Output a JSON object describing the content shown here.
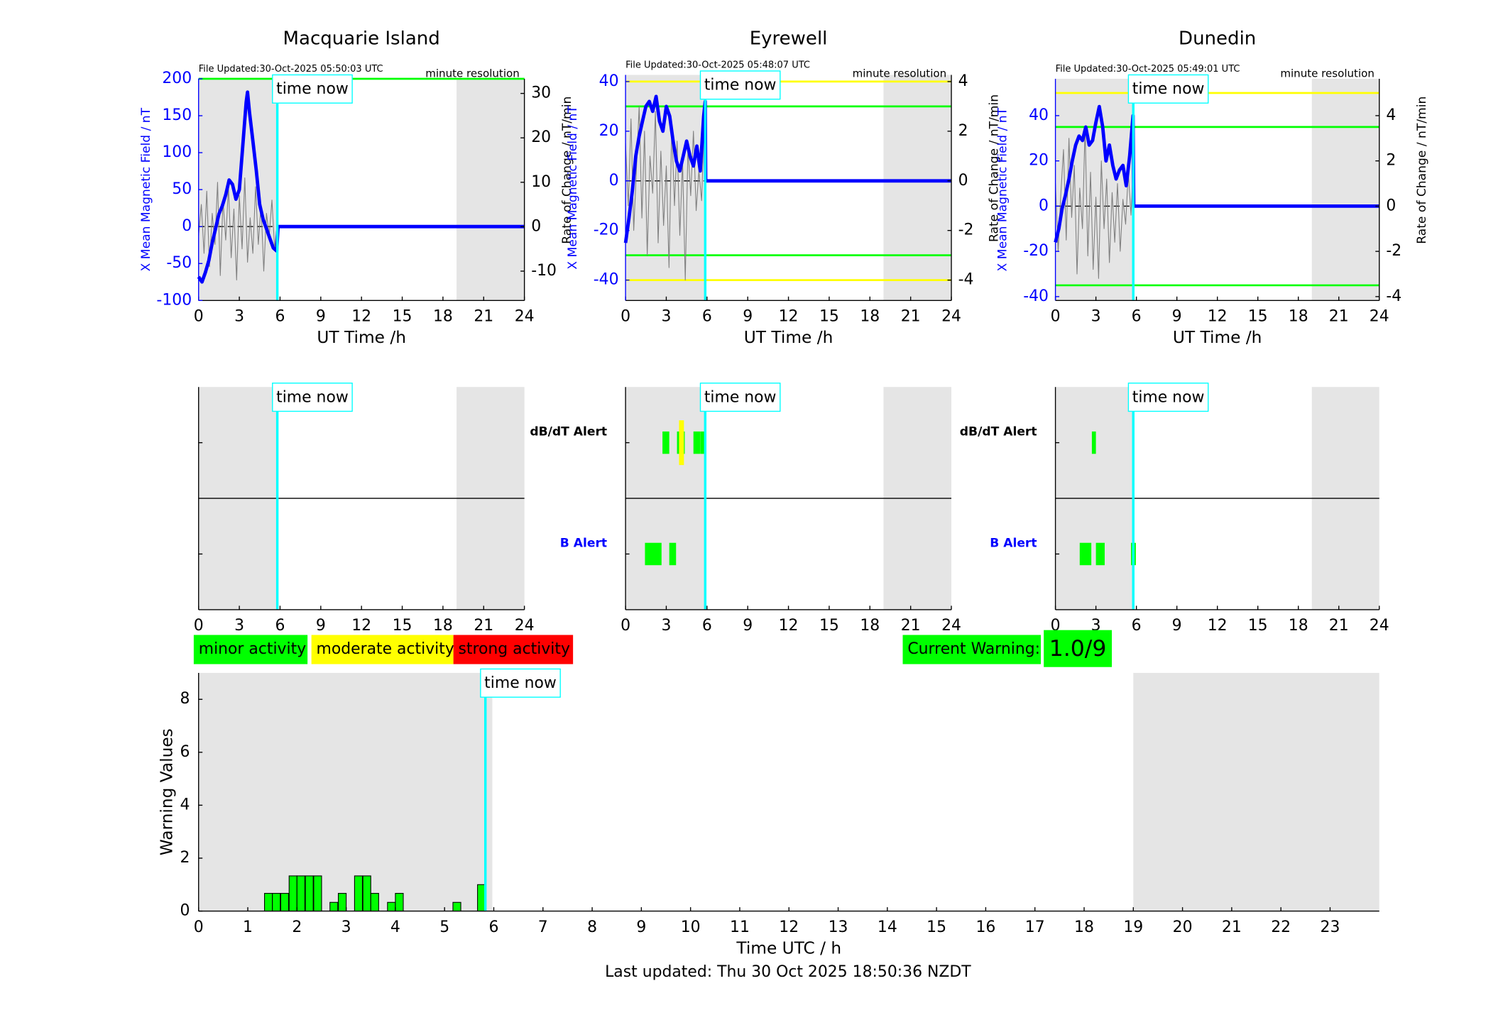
{
  "chart_data": [
    {
      "type": "line",
      "title": "Macquarie Island",
      "file_updated": "File Updated:30-Oct-2025 05:50:03 UTC",
      "resolution": "minute resolution",
      "now_label": "time now",
      "time_now": 5.8,
      "xlabel": "UT Time /h",
      "ylabel": "X Mean Magnetic Field / nT",
      "y2label": "Rate of Change / nT/min",
      "xlim": [
        0,
        24
      ],
      "xticks": [
        0,
        3,
        6,
        9,
        12,
        15,
        18,
        21,
        24
      ],
      "ylim": [
        -100,
        200
      ],
      "yticks": [
        -100,
        -50,
        0,
        50,
        100,
        150,
        200
      ],
      "y2lim": [
        -16.6,
        33.3
      ],
      "y2ticks": [
        -10,
        0,
        10,
        20,
        30
      ],
      "shaded": [
        [
          0,
          5.8
        ],
        [
          19,
          24
        ]
      ],
      "shade_color": "#e5e5e5",
      "thresholds": [
        {
          "value": 200,
          "color": "#00ff00"
        }
      ],
      "series": [
        {
          "color": "#808080",
          "axis": "y2",
          "x": [
            0,
            0.2,
            0.4,
            0.6,
            0.8,
            1,
            1.2,
            1.4,
            1.6,
            1.8,
            2,
            2.2,
            2.4,
            2.6,
            2.8,
            3,
            3.2,
            3.4,
            3.6,
            3.8,
            4,
            4.2,
            4.4,
            4.6,
            4.8,
            5,
            5.2,
            5.4,
            5.6,
            5.8
          ],
          "values": [
            -2,
            5,
            -6,
            8,
            -9,
            3,
            -4,
            10,
            -11,
            6,
            -3,
            9,
            -7,
            4,
            -12,
            7,
            -5,
            11,
            -8,
            2,
            -6,
            9,
            -4,
            5,
            -10,
            3,
            -2,
            6,
            -5,
            1
          ]
        },
        {
          "color": "#0000ff",
          "x": [
            0,
            0.25,
            0.5,
            0.75,
            1,
            1.25,
            1.5,
            1.75,
            2,
            2.25,
            2.5,
            2.75,
            3,
            3.25,
            3.5,
            3.6,
            3.75,
            4,
            4.25,
            4.5,
            4.75,
            5,
            5.25,
            5.5,
            5.75,
            5.85,
            24
          ],
          "values": [
            -68,
            -75,
            -62,
            -46,
            -22,
            -3,
            17,
            28,
            43,
            63,
            57,
            37,
            50,
            109,
            168,
            182,
            155,
            116,
            76,
            30,
            10,
            -3,
            -16,
            -29,
            -33,
            0,
            0
          ]
        }
      ]
    },
    {
      "type": "line",
      "title": "Eyrewell",
      "file_updated": "File Updated:30-Oct-2025 05:48:07 UTC",
      "resolution": "minute resolution",
      "now_label": "time now",
      "time_now": 5.87,
      "xlabel": "UT Time /h",
      "ylabel": "X Mean Magnetic Field / nT",
      "y2label": "Rate of Change / nT/min",
      "xlim": [
        0,
        24
      ],
      "xticks": [
        0,
        3,
        6,
        9,
        12,
        15,
        18,
        21,
        24
      ],
      "ylim": [
        -48.2,
        42.7
      ],
      "yticks": [
        -40,
        -20,
        0,
        20,
        40
      ],
      "y2lim": [
        -4.82,
        4.27
      ],
      "y2ticks": [
        -4,
        -2,
        0,
        2,
        4
      ],
      "shaded": [
        [
          0,
          5.87
        ],
        [
          19,
          24
        ]
      ],
      "shade_color": "#e5e5e5",
      "thresholds": [
        {
          "value": 40,
          "color": "#ffff00"
        },
        {
          "value": -40,
          "color": "#ffff00"
        },
        {
          "value": 30,
          "color": "#00ff00"
        },
        {
          "value": -30,
          "color": "#00ff00"
        }
      ],
      "series": [
        {
          "color": "#808080",
          "axis": "y2",
          "x": [
            0,
            0.2,
            0.4,
            0.6,
            0.8,
            1,
            1.2,
            1.4,
            1.6,
            1.8,
            2,
            2.2,
            2.4,
            2.6,
            2.8,
            3,
            3.2,
            3.4,
            3.6,
            3.8,
            4,
            4.2,
            4.4,
            4.6,
            4.8,
            5,
            5.2,
            5.4,
            5.6,
            5.8
          ],
          "values": [
            1.5,
            -1,
            2.5,
            -2,
            0.5,
            3,
            -1.5,
            2,
            -3,
            1,
            -0.5,
            2.8,
            -2.5,
            1.2,
            -1.8,
            0.6,
            -3.5,
            2.2,
            -1,
            1.6,
            -2.2,
            0.8,
            -4,
            1.4,
            -0.6,
            2,
            -1.2,
            0.4,
            -0.8,
            2.5
          ]
        },
        {
          "color": "#0000ff",
          "x": [
            0,
            0.25,
            0.5,
            0.75,
            1,
            1.25,
            1.5,
            1.75,
            2,
            2.25,
            2.5,
            2.75,
            3,
            3.25,
            3.5,
            3.75,
            4,
            4.25,
            4.5,
            4.75,
            5,
            5.25,
            5.5,
            5.75,
            5.87,
            5.9,
            24
          ],
          "values": [
            -25,
            -15,
            -4,
            10,
            18,
            24,
            30,
            32,
            28,
            34,
            24,
            20,
            30,
            26,
            16,
            8,
            4,
            10,
            16,
            10,
            6,
            14,
            4,
            26,
            32,
            0,
            0
          ]
        }
      ]
    },
    {
      "type": "line",
      "title": "Dunedin",
      "file_updated": "File Updated:30-Oct-2025 05:49:01 UTC",
      "resolution": "minute resolution",
      "now_label": "time now",
      "time_now": 5.77,
      "xlabel": "UT Time /h",
      "ylabel": "X Mean Magnetic Field / nT",
      "y2label": "Rate of Change / nT/min",
      "xlim": [
        0,
        24
      ],
      "xticks": [
        0,
        3,
        6,
        9,
        12,
        15,
        18,
        21,
        24
      ],
      "ylim": [
        -41.7,
        56.3
      ],
      "yticks": [
        -40,
        -20,
        0,
        20,
        40
      ],
      "y2lim": [
        -4.17,
        5.63
      ],
      "y2ticks": [
        -4,
        -2,
        0,
        2,
        4
      ],
      "shaded": [
        [
          0,
          5.77
        ],
        [
          19,
          24
        ]
      ],
      "shade_color": "#e5e5e5",
      "thresholds": [
        {
          "value": 50,
          "color": "#ffff00"
        },
        {
          "value": 35,
          "color": "#00ff00"
        },
        {
          "value": -35,
          "color": "#00ff00"
        }
      ],
      "series": [
        {
          "color": "#808080",
          "axis": "y2",
          "x": [
            0,
            0.2,
            0.4,
            0.6,
            0.8,
            1,
            1.2,
            1.4,
            1.6,
            1.8,
            2,
            2.2,
            2.4,
            2.6,
            2.8,
            3,
            3.2,
            3.4,
            3.6,
            3.8,
            4,
            4.2,
            4.4,
            4.6,
            4.8,
            5,
            5.2,
            5.4,
            5.6,
            5.8
          ],
          "values": [
            1,
            -2,
            0.5,
            2.5,
            -1.5,
            3,
            -0.5,
            1.8,
            -3,
            0.8,
            -1,
            3.5,
            -2.2,
            1.5,
            -2.8,
            0.4,
            -3.2,
            2,
            -1,
            1.2,
            -2.5,
            0.6,
            -1.6,
            1,
            -2,
            0.3,
            -0.8,
            1.5,
            -0.4,
            2.2
          ]
        },
        {
          "color": "#0000ff",
          "x": [
            0,
            0.25,
            0.5,
            0.75,
            1,
            1.25,
            1.5,
            1.75,
            2,
            2.25,
            2.5,
            2.75,
            3,
            3.25,
            3.5,
            3.75,
            4,
            4.25,
            4.5,
            4.75,
            5,
            5.25,
            5.5,
            5.75,
            5.8,
            24
          ],
          "values": [
            -16,
            -10,
            -1,
            5,
            12,
            20,
            27,
            31,
            29,
            35,
            27,
            29,
            37,
            44,
            35,
            20,
            27,
            18,
            12,
            16,
            18,
            9,
            22,
            40,
            0,
            0
          ]
        }
      ]
    },
    {
      "type": "timeline",
      "now_label": "time now",
      "time_now": 5.8,
      "xlim": [
        0,
        24
      ],
      "xticks": [
        0,
        3,
        6,
        9,
        12,
        15,
        18,
        21,
        24
      ],
      "shaded": [
        [
          0,
          5.8
        ],
        [
          19,
          24
        ]
      ],
      "shade_color": "#e5e5e5",
      "rows": [
        {
          "intervals": []
        },
        {
          "intervals": []
        }
      ]
    },
    {
      "type": "timeline",
      "now_label": "time now",
      "time_now": 5.87,
      "xlim": [
        0,
        24
      ],
      "xticks": [
        0,
        3,
        6,
        9,
        12,
        15,
        18,
        21,
        24
      ],
      "shaded": [
        [
          0,
          5.87
        ],
        [
          19,
          24
        ]
      ],
      "shade_color": "#e5e5e5",
      "rows": [
        {
          "name": "dB/dT Alert",
          "label_color": "#000000",
          "intervals": [
            {
              "start": 2.72,
              "end": 3.22,
              "color": "#00ff00"
            },
            {
              "start": 3.79,
              "end": 4.36,
              "color": "#00ff00"
            },
            {
              "start": 5.0,
              "end": 5.5,
              "color": "#00ff00"
            },
            {
              "start": 5.51,
              "end": 5.8,
              "color": "#00ff00"
            },
            {
              "start": 3.94,
              "end": 4.3,
              "color": "#ffff00"
            }
          ]
        },
        {
          "name": "B Alert",
          "label_color": "#0000ff",
          "intervals": [
            {
              "start": 1.43,
              "end": 2.65,
              "color": "#00ff00"
            },
            {
              "start": 3.22,
              "end": 3.72,
              "color": "#00ff00"
            }
          ]
        }
      ]
    },
    {
      "type": "timeline",
      "now_label": "time now",
      "time_now": 5.77,
      "xlim": [
        0,
        24
      ],
      "xticks": [
        0,
        3,
        6,
        9,
        12,
        15,
        18,
        21,
        24
      ],
      "shaded": [
        [
          0,
          5.77
        ],
        [
          19,
          24
        ]
      ],
      "shade_color": "#e5e5e5",
      "rows": [
        {
          "name": "dB/dT Alert",
          "label_color": "#000000",
          "intervals": [
            {
              "start": 2.7,
              "end": 3.0,
              "color": "#00ff00"
            }
          ]
        },
        {
          "name": "B Alert",
          "label_color": "#0000ff",
          "intervals": [
            {
              "start": 1.8,
              "end": 2.66,
              "color": "#00ff00"
            },
            {
              "start": 3.0,
              "end": 3.65,
              "color": "#00ff00"
            },
            {
              "start": 5.6,
              "end": 5.96,
              "color": "#00ff00"
            }
          ]
        }
      ]
    },
    {
      "type": "bar",
      "now_label": "time now",
      "time_now": 5.83,
      "xlabel": "Time UTC / h",
      "ylabel": "Warning Values",
      "footnote": "Last updated: Thu 30 Oct 2025 18:50:36 NZDT",
      "xlim": [
        0,
        24
      ],
      "xticks": [
        0,
        1,
        2,
        3,
        4,
        5,
        6,
        7,
        8,
        9,
        10,
        11,
        12,
        13,
        14,
        15,
        16,
        17,
        18,
        19,
        20,
        21,
        22,
        23
      ],
      "ylim": [
        0,
        9
      ],
      "yticks": [
        0,
        2,
        4,
        6,
        8
      ],
      "shaded": [
        [
          0,
          5.97
        ],
        [
          19,
          24
        ]
      ],
      "shade_color": "#e5e5e5",
      "color": "#00ff00",
      "x": [
        1.42,
        1.58,
        1.75,
        1.92,
        2.08,
        2.25,
        2.42,
        2.75,
        2.92,
        3.25,
        3.42,
        3.58,
        3.92,
        4.08,
        5.25,
        5.75
      ],
      "values": [
        0.67,
        0.67,
        0.67,
        1.33,
        1.33,
        1.33,
        1.33,
        0.33,
        0.67,
        1.33,
        1.33,
        0.67,
        0.33,
        0.67,
        0.33,
        1.0
      ]
    }
  ],
  "activity_legend": [
    {
      "label": "minor activity",
      "color": "#00ff00"
    },
    {
      "label": "moderate activity",
      "color": "#ffff00"
    },
    {
      "label": "strong activity",
      "color": "#ff0000"
    }
  ],
  "current_warning": {
    "label": "Current Warning:",
    "value": "1.0/9",
    "color": "#00ff00"
  }
}
